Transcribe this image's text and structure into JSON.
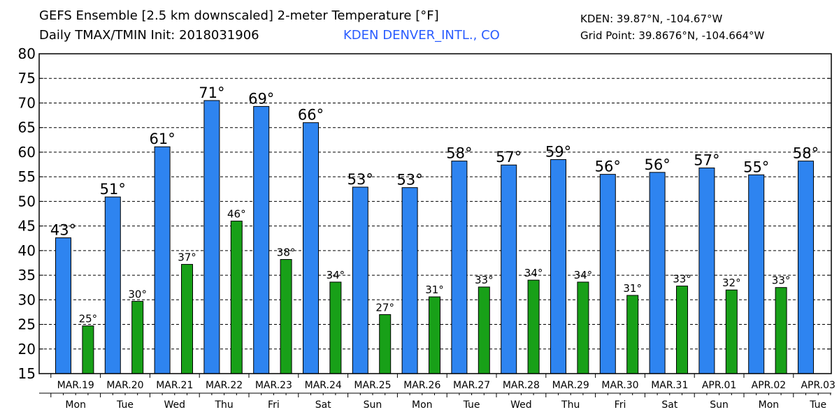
{
  "header": {
    "title": "GEFS Ensemble [2.5 km downscaled] 2-meter Temperature [°F]",
    "subtitle": "Daily TMAX/TMIN Init: 2018031906",
    "station": "KDEN DENVER_INTL., CO",
    "station_coords": "KDEN: 39.87°N, -104.67°W",
    "grid_point": "Grid Point: 39.8676°N, -104.664°W"
  },
  "colors": {
    "tmax": "#2e84f0",
    "tmin": "#18a018",
    "station_text": "#2a5cff"
  },
  "chart_data": {
    "type": "bar",
    "title": "GEFS Ensemble [2.5 km downscaled] 2-meter Temperature [°F]",
    "ylim": [
      15,
      80
    ],
    "yticks": [
      15,
      20,
      25,
      30,
      35,
      40,
      45,
      50,
      55,
      60,
      65,
      70,
      75,
      80
    ],
    "grid": "horizontal dashed",
    "categories": [
      "MAR.19",
      "MAR.20",
      "MAR.21",
      "MAR.22",
      "MAR.23",
      "MAR.24",
      "MAR.25",
      "MAR.26",
      "MAR.27",
      "MAR.28",
      "MAR.29",
      "MAR.30",
      "MAR.31",
      "APR.01",
      "APR.02",
      "APR.03"
    ],
    "weekdays": [
      "Mon",
      "Tue",
      "Wed",
      "Thu",
      "Fri",
      "Sat",
      "Sun",
      "Mon",
      "Tue",
      "Wed",
      "Thu",
      "Fri",
      "Sat",
      "Sun",
      "Mon",
      "Tue"
    ],
    "bars": [
      {
        "kind": "tmax",
        "value": 42.6,
        "label": "43°"
      },
      {
        "kind": "tmin",
        "value": 24.7,
        "label": "25°"
      },
      {
        "kind": "tmax",
        "value": 50.9,
        "label": "51°"
      },
      {
        "kind": "tmin",
        "value": 29.7,
        "label": "30°"
      },
      {
        "kind": "tmax",
        "value": 61.1,
        "label": "61°"
      },
      {
        "kind": "tmin",
        "value": 37.2,
        "label": "37°"
      },
      {
        "kind": "tmax",
        "value": 70.5,
        "label": "71°"
      },
      {
        "kind": "tmin",
        "value": 46.0,
        "label": "46°"
      },
      {
        "kind": "tmax",
        "value": 69.3,
        "label": "69°"
      },
      {
        "kind": "tmin",
        "value": 38.2,
        "label": "38°"
      },
      {
        "kind": "tmax",
        "value": 66.0,
        "label": "66°"
      },
      {
        "kind": "tmin",
        "value": 33.6,
        "label": "34°"
      },
      {
        "kind": "tmax",
        "value": 52.9,
        "label": "53°"
      },
      {
        "kind": "tmin",
        "value": 27.0,
        "label": "27°"
      },
      {
        "kind": "tmax",
        "value": 52.8,
        "label": "53°"
      },
      {
        "kind": "tmin",
        "value": 30.6,
        "label": "31°"
      },
      {
        "kind": "tmax",
        "value": 58.2,
        "label": "58°"
      },
      {
        "kind": "tmin",
        "value": 32.6,
        "label": "33°"
      },
      {
        "kind": "tmax",
        "value": 57.4,
        "label": "57°"
      },
      {
        "kind": "tmin",
        "value": 34.0,
        "label": "34°"
      },
      {
        "kind": "tmax",
        "value": 58.5,
        "label": "59°"
      },
      {
        "kind": "tmin",
        "value": 33.6,
        "label": "34°"
      },
      {
        "kind": "tmax",
        "value": 55.5,
        "label": "56°"
      },
      {
        "kind": "tmin",
        "value": 30.9,
        "label": "31°"
      },
      {
        "kind": "tmax",
        "value": 55.9,
        "label": "56°"
      },
      {
        "kind": "tmin",
        "value": 32.8,
        "label": "33°"
      },
      {
        "kind": "tmax",
        "value": 56.8,
        "label": "57°"
      },
      {
        "kind": "tmin",
        "value": 32.0,
        "label": "32°"
      },
      {
        "kind": "tmax",
        "value": 55.4,
        "label": "55°"
      },
      {
        "kind": "tmin",
        "value": 32.5,
        "label": "33°"
      },
      {
        "kind": "tmax",
        "value": 58.2,
        "label": "58°"
      }
    ]
  }
}
